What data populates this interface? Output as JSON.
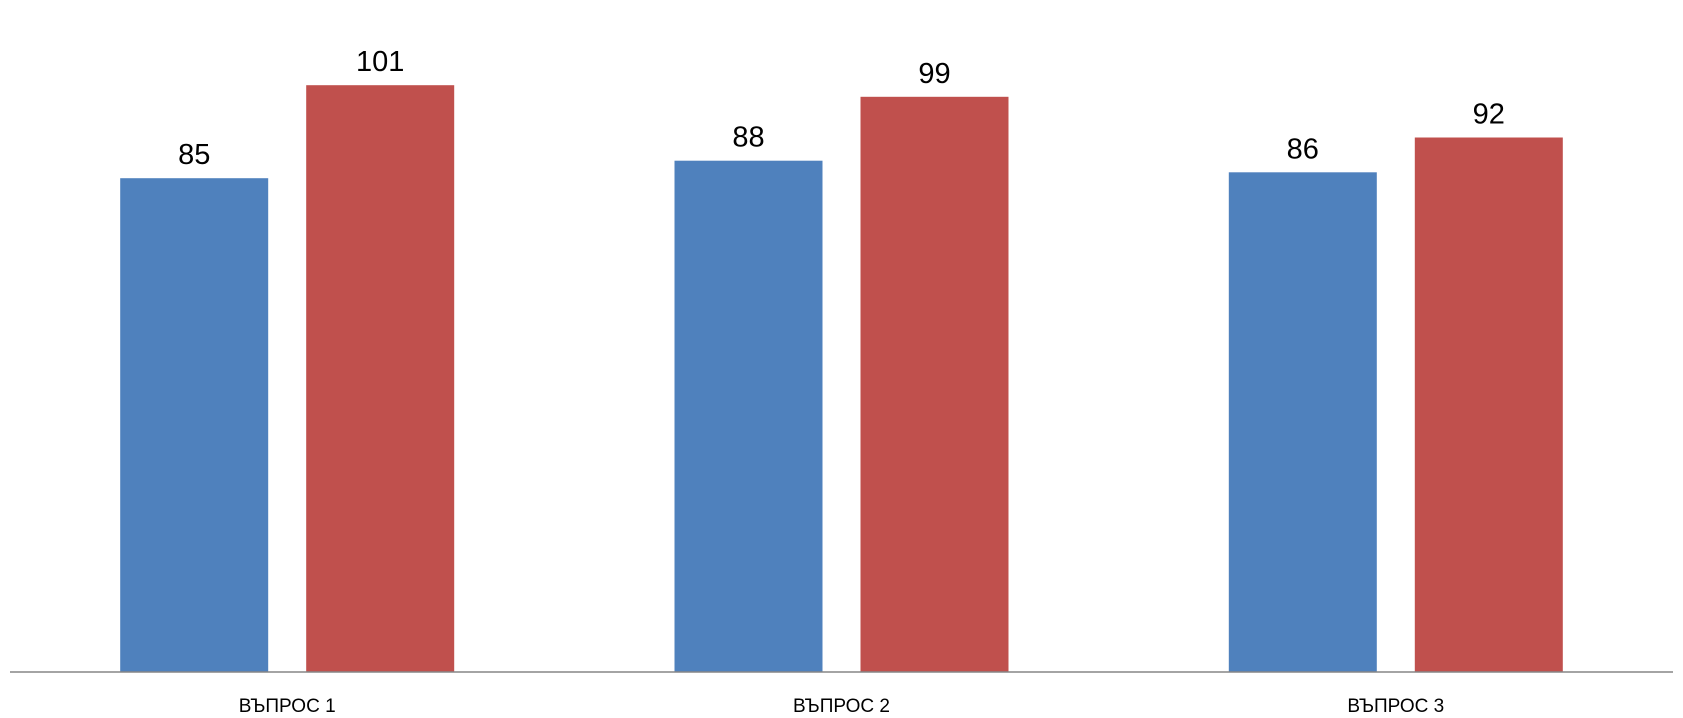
{
  "chart_data": {
    "type": "bar",
    "categories": [
      "ВЪПРОС 1",
      "ВЪПРОС 2",
      "ВЪПРОС 3"
    ],
    "series": [
      {
        "values": [
          85,
          88,
          86
        ],
        "color": "#4F81BD"
      },
      {
        "values": [
          101,
          99,
          92
        ],
        "color": "#C0504D"
      }
    ],
    "title": "",
    "xlabel": "",
    "ylabel": "",
    "ylim": [
      0,
      105
    ],
    "grid": false,
    "legend": "none",
    "data_labels": true
  }
}
